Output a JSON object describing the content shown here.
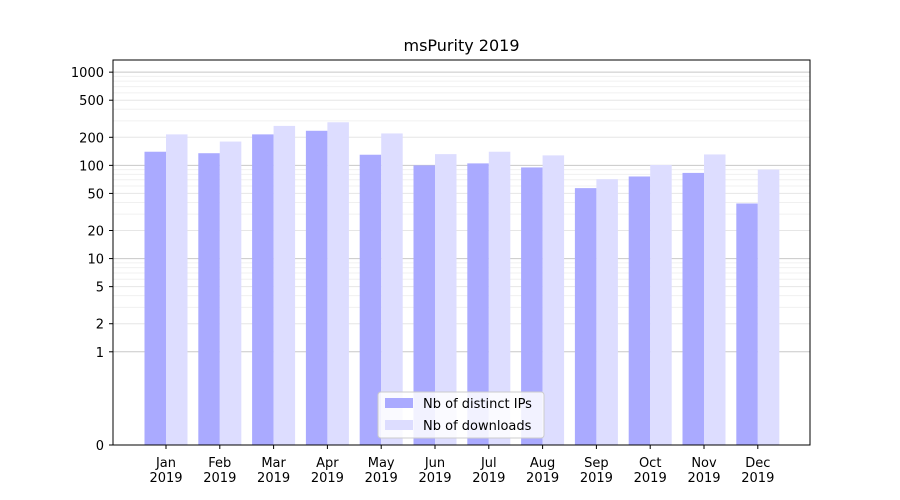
{
  "chart_data": {
    "type": "bar",
    "title": "msPurity 2019",
    "xlabel": "",
    "ylabel": "",
    "yscale": "symlog",
    "ylim": [
      0,
      1350
    ],
    "yticks": [
      0,
      1,
      2,
      5,
      10,
      20,
      50,
      100,
      200,
      500,
      1000
    ],
    "grid": true,
    "legend_position": "bottom-center",
    "categories": [
      [
        "Jan",
        "2019"
      ],
      [
        "Feb",
        "2019"
      ],
      [
        "Mar",
        "2019"
      ],
      [
        "Apr",
        "2019"
      ],
      [
        "May",
        "2019"
      ],
      [
        "Jun",
        "2019"
      ],
      [
        "Jul",
        "2019"
      ],
      [
        "Aug",
        "2019"
      ],
      [
        "Sep",
        "2019"
      ],
      [
        "Oct",
        "2019"
      ],
      [
        "Nov",
        "2019"
      ],
      [
        "Dec",
        "2019"
      ]
    ],
    "series": [
      {
        "name": "Nb of distinct IPs",
        "color": "#aaaaff",
        "values": [
          140,
          135,
          215,
          235,
          130,
          100,
          105,
          95,
          57,
          76,
          83,
          39
        ]
      },
      {
        "name": "Nb of downloads",
        "color": "#ddddff",
        "values": [
          215,
          180,
          265,
          290,
          220,
          132,
          140,
          128,
          71,
          101,
          131,
          90
        ]
      }
    ]
  }
}
